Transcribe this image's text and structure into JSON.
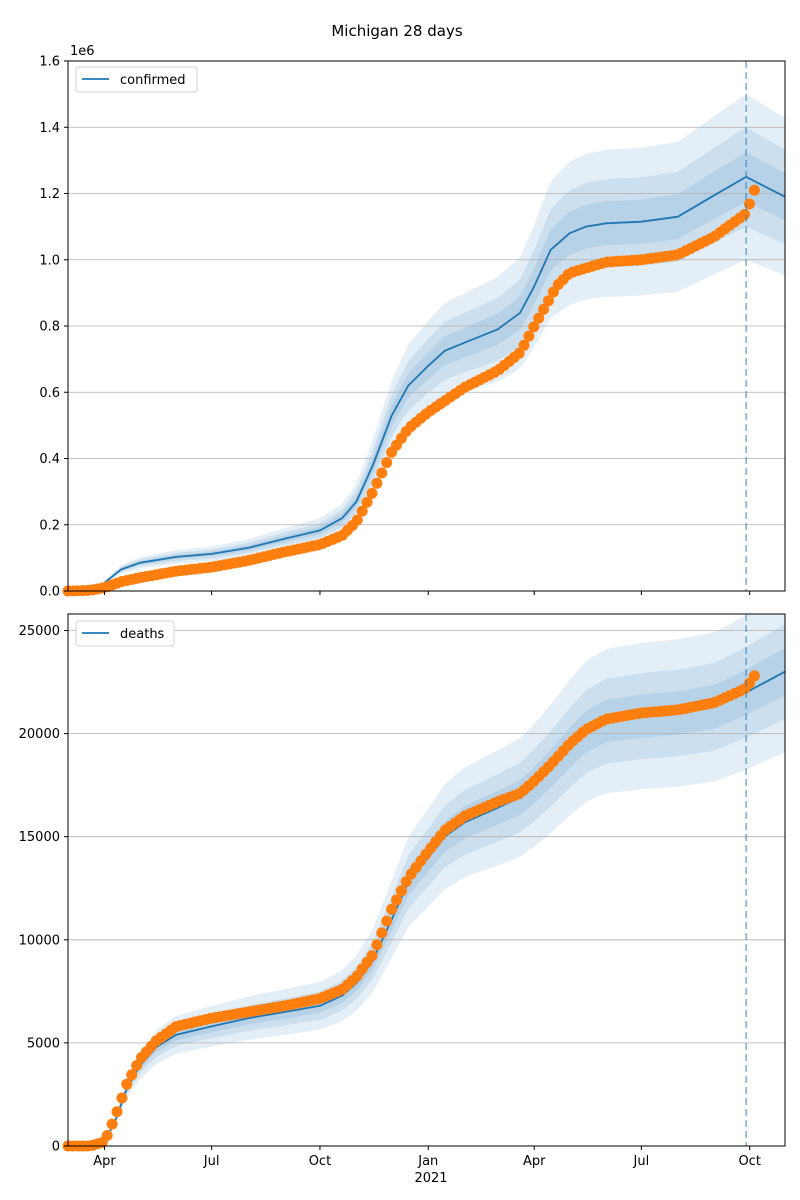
{
  "chart_data": {
    "title": "Michigan 28 days",
    "type": "line",
    "x_axis": {
      "type": "date",
      "range": [
        "2020-03-01",
        "2021-10-31"
      ],
      "ticks": [
        {
          "date": "2020-04-01",
          "label": "Apr"
        },
        {
          "date": "2020-07-01",
          "label": "Jul"
        },
        {
          "date": "2020-10-01",
          "label": "Oct"
        },
        {
          "date": "2021-01-01",
          "label": "Jan"
        },
        {
          "date": "2021-04-01",
          "label": "Apr"
        },
        {
          "date": "2021-07-01",
          "label": "Jul"
        },
        {
          "date": "2021-10-01",
          "label": "Oct"
        }
      ],
      "year_label": "2021",
      "forecast_date": "2021-09-28"
    },
    "panels": [
      {
        "legend": "confirmed",
        "ylim": [
          0,
          1.6
        ],
        "yticks": [
          0,
          0.2,
          0.4,
          0.6,
          0.8,
          1.0,
          1.2,
          1.4,
          1.6
        ],
        "ytick_labels": [
          "0.0",
          "0.2",
          "0.4",
          "0.6",
          "0.8",
          "1.0",
          "1.2",
          "1.4",
          "1.6"
        ],
        "multiplier": "1e6",
        "grid": true,
        "legend_position": "upper-left",
        "observed": {
          "dates": [
            "2020-03-01",
            "2020-03-20",
            "2020-04-01",
            "2020-04-15",
            "2020-05-01",
            "2020-06-01",
            "2020-07-01",
            "2020-08-01",
            "2020-09-01",
            "2020-10-01",
            "2020-10-20",
            "2020-11-01",
            "2020-11-15",
            "2020-12-01",
            "2020-12-15",
            "2021-01-01",
            "2021-02-01",
            "2021-03-01",
            "2021-03-20",
            "2021-04-01",
            "2021-04-20",
            "2021-05-01",
            "2021-06-01",
            "2021-07-01",
            "2021-08-01",
            "2021-09-01",
            "2021-09-28",
            "2021-10-05"
          ],
          "values": [
            0.0,
            0.002,
            0.01,
            0.028,
            0.04,
            0.06,
            0.072,
            0.092,
            0.118,
            0.14,
            0.168,
            0.21,
            0.3,
            0.42,
            0.49,
            0.54,
            0.615,
            0.665,
            0.72,
            0.8,
            0.92,
            0.96,
            0.993,
            1.0,
            1.015,
            1.07,
            1.14,
            1.21
          ]
        },
        "model": {
          "dates": [
            "2020-03-01",
            "2020-03-25",
            "2020-04-01",
            "2020-04-15",
            "2020-05-01",
            "2020-06-01",
            "2020-07-01",
            "2020-08-01",
            "2020-09-01",
            "2020-10-01",
            "2020-10-20",
            "2020-11-01",
            "2020-11-15",
            "2020-12-01",
            "2020-12-15",
            "2021-01-01",
            "2021-01-15",
            "2021-02-01",
            "2021-03-01",
            "2021-03-20",
            "2021-04-01",
            "2021-04-15",
            "2021-05-01",
            "2021-05-15",
            "2021-06-01",
            "2021-07-01",
            "2021-08-01",
            "2021-09-01",
            "2021-09-28",
            "2021-10-31"
          ],
          "values": [
            0.0,
            0.002,
            0.025,
            0.065,
            0.085,
            0.103,
            0.112,
            0.13,
            0.158,
            0.183,
            0.22,
            0.27,
            0.38,
            0.53,
            0.62,
            0.68,
            0.725,
            0.75,
            0.79,
            0.84,
            0.92,
            1.03,
            1.08,
            1.1,
            1.11,
            1.115,
            1.13,
            1.195,
            1.25,
            1.19
          ]
        },
        "band_spreads": [
          0.06,
          0.12,
          0.2
        ]
      },
      {
        "legend": "deaths",
        "ylim": [
          0,
          25800
        ],
        "yticks": [
          0,
          5000,
          10000,
          15000,
          20000,
          25000
        ],
        "ytick_labels": [
          "0",
          "5000",
          "10000",
          "15000",
          "20000",
          "25000"
        ],
        "grid": true,
        "legend_position": "upper-left",
        "observed": {
          "dates": [
            "2020-03-01",
            "2020-03-20",
            "2020-04-01",
            "2020-04-10",
            "2020-04-20",
            "2020-05-01",
            "2020-05-15",
            "2020-06-01",
            "2020-07-01",
            "2020-08-01",
            "2020-09-01",
            "2020-10-01",
            "2020-10-20",
            "2020-11-01",
            "2020-11-15",
            "2020-12-01",
            "2020-12-15",
            "2021-01-01",
            "2021-01-15",
            "2021-02-01",
            "2021-03-01",
            "2021-03-20",
            "2021-04-01",
            "2021-04-15",
            "2021-05-01",
            "2021-05-15",
            "2021-06-01",
            "2021-07-01",
            "2021-08-01",
            "2021-09-01",
            "2021-09-28",
            "2021-10-05"
          ],
          "values": [
            0,
            0,
            200,
            1400,
            3000,
            4200,
            5100,
            5800,
            6200,
            6500,
            6800,
            7150,
            7600,
            8200,
            9300,
            11500,
            13000,
            14300,
            15300,
            16000,
            16700,
            17100,
            17700,
            18500,
            19500,
            20200,
            20700,
            21000,
            21150,
            21500,
            22200,
            22800
          ]
        },
        "model": {
          "dates": [
            "2020-03-01",
            "2020-03-20",
            "2020-04-01",
            "2020-04-10",
            "2020-04-20",
            "2020-05-01",
            "2020-05-15",
            "2020-06-01",
            "2020-07-01",
            "2020-08-01",
            "2020-09-01",
            "2020-10-01",
            "2020-10-20",
            "2020-11-01",
            "2020-11-15",
            "2020-12-01",
            "2020-12-15",
            "2021-01-01",
            "2021-01-15",
            "2021-02-01",
            "2021-03-01",
            "2021-03-20",
            "2021-04-01",
            "2021-04-15",
            "2021-05-01",
            "2021-05-15",
            "2021-06-01",
            "2021-07-01",
            "2021-08-01",
            "2021-09-01",
            "2021-09-28",
            "2021-10-31"
          ],
          "values": [
            0,
            0,
            200,
            1200,
            2800,
            3900,
            4800,
            5400,
            5800,
            6200,
            6500,
            6800,
            7300,
            7900,
            9000,
            11000,
            12800,
            14000,
            15000,
            15700,
            16400,
            16900,
            17500,
            18300,
            19300,
            20100,
            20600,
            20850,
            21000,
            21300,
            22000,
            23000
          ]
        },
        "band_spreads": [
          0.05,
          0.1,
          0.17
        ]
      }
    ],
    "colors": {
      "line": "#1f77b4",
      "markers": "#ff7f0e",
      "band": "#1f77b4",
      "grid": "#b0b0b0",
      "forecast_line": "#1f77b4"
    }
  }
}
